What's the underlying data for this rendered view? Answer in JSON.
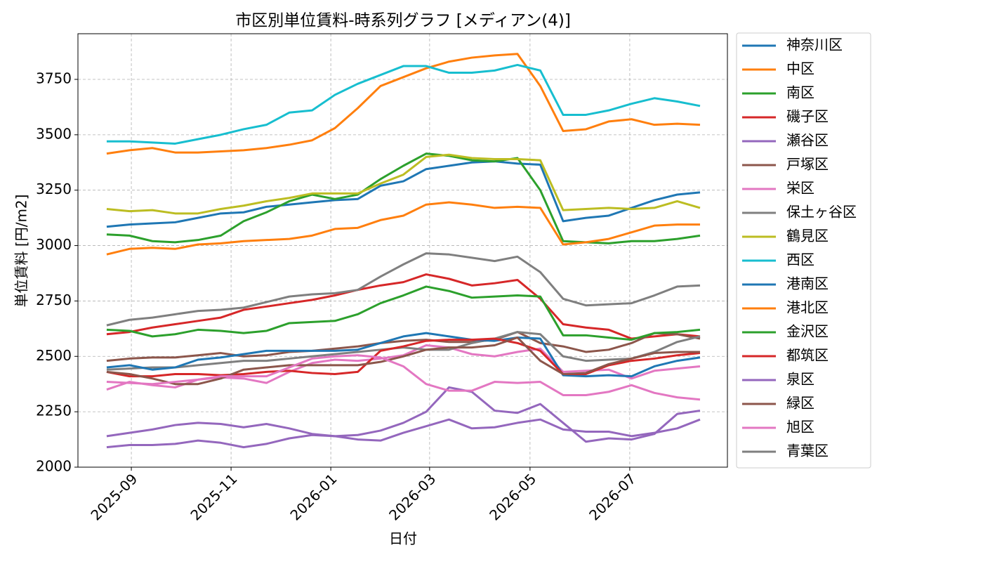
{
  "chart_data": {
    "type": "line",
    "title": "市区別単位賃料-時系列グラフ [メディアン(4)]",
    "xlabel": "日付",
    "ylabel": "単位賃料 [円/m2]",
    "categories": [
      null,
      null,
      null,
      null,
      null,
      null,
      null,
      null,
      null,
      null,
      null,
      null,
      null,
      null,
      null,
      null,
      null,
      null,
      null,
      null,
      null,
      null,
      null,
      null,
      null,
      null,
      null
    ],
    "xlim": [
      -1.26,
      27.2
    ],
    "xticks": [
      {
        "value": 1.08,
        "label": "2025-09"
      },
      {
        "value": 5.45,
        "label": "2025-11"
      },
      {
        "value": 9.82,
        "label": "2026-01"
      },
      {
        "value": 14.15,
        "label": "2026-03"
      },
      {
        "value": 18.55,
        "label": "2026-05"
      },
      {
        "value": 22.92,
        "label": "2026-07"
      }
    ],
    "ylim": [
      2000,
      3956
    ],
    "yticks": [
      2000,
      2250,
      2500,
      2750,
      3000,
      3250,
      3500,
      3750
    ],
    "grid": true,
    "legend": "outside-right",
    "series": [
      {
        "name": "神奈川区",
        "color": "#1f77b4",
        "values": [
          3085,
          3095,
          3100,
          3105,
          3125,
          3145,
          3150,
          3175,
          3185,
          3195,
          3205,
          3210,
          3270,
          3290,
          3345,
          3360,
          3375,
          3380,
          3370,
          3365,
          3110,
          3125,
          3135,
          3170,
          3205,
          3230,
          3240
        ]
      },
      {
        "name": "中区",
        "color": "#ff7f0e",
        "values": [
          3415,
          3430,
          3440,
          3420,
          3420,
          3425,
          3430,
          3440,
          3455,
          3475,
          3530,
          3620,
          3720,
          3760,
          3800,
          3830,
          3848,
          3858,
          3865,
          3720,
          3517,
          3525,
          3560,
          3570,
          3545,
          3550,
          3545
        ]
      },
      {
        "name": "南区",
        "color": "#2ca02c",
        "values": [
          3050,
          3045,
          3020,
          3015,
          3025,
          3045,
          3110,
          3150,
          3200,
          3230,
          3210,
          3230,
          3300,
          3360,
          3415,
          3405,
          3385,
          3380,
          3395,
          3250,
          3020,
          3015,
          3010,
          3020,
          3020,
          3030,
          3045
        ]
      },
      {
        "name": "磯子区",
        "color": "#d62728",
        "values": [
          2600,
          2610,
          2630,
          2645,
          2660,
          2675,
          2710,
          2725,
          2740,
          2755,
          2775,
          2800,
          2820,
          2835,
          2870,
          2850,
          2820,
          2830,
          2845,
          2760,
          2645,
          2630,
          2620,
          2580,
          2590,
          2600,
          2590
        ]
      },
      {
        "name": "瀬谷区",
        "color": "#9467bd",
        "values": [
          2090,
          2100,
          2100,
          2105,
          2120,
          2110,
          2090,
          2105,
          2130,
          2145,
          2140,
          2125,
          2120,
          2155,
          2185,
          2215,
          2175,
          2180,
          2200,
          2215,
          2170,
          2160,
          2160,
          2140,
          2155,
          2175,
          2215
        ]
      },
      {
        "name": "戸塚区",
        "color": "#8c564b",
        "values": [
          2480,
          2490,
          2495,
          2495,
          2505,
          2515,
          2500,
          2505,
          2520,
          2525,
          2535,
          2545,
          2560,
          2570,
          2575,
          2565,
          2565,
          2575,
          2610,
          2560,
          2545,
          2520,
          2530,
          2560,
          2605,
          2600,
          2580
        ]
      },
      {
        "name": "栄区",
        "color": "#e377c2",
        "values": [
          2350,
          2385,
          2370,
          2360,
          2395,
          2405,
          2400,
          2380,
          2430,
          2470,
          2485,
          2480,
          2490,
          2505,
          2550,
          2540,
          2510,
          2500,
          2520,
          2535,
          2430,
          2435,
          2440,
          2400,
          2435,
          2445,
          2455
        ]
      },
      {
        "name": "保土ヶ谷区",
        "color": "#7f7f7f",
        "values": [
          2440,
          2445,
          2450,
          2450,
          2460,
          2470,
          2480,
          2480,
          2490,
          2500,
          2510,
          2520,
          2530,
          2540,
          2530,
          2530,
          2560,
          2580,
          2610,
          2600,
          2500,
          2480,
          2485,
          2490,
          2520,
          2565,
          2590
        ]
      },
      {
        "name": "鶴見区",
        "color": "#bcbd22",
        "values": [
          3165,
          3155,
          3160,
          3145,
          3145,
          3165,
          3180,
          3200,
          3215,
          3235,
          3235,
          3235,
          3280,
          3320,
          3400,
          3410,
          3395,
          3390,
          3390,
          3385,
          3160,
          3165,
          3170,
          3165,
          3170,
          3200,
          3170
        ]
      },
      {
        "name": "西区",
        "color": "#17becf",
        "values": [
          3470,
          3470,
          3465,
          3460,
          3480,
          3500,
          3525,
          3545,
          3600,
          3610,
          3680,
          3730,
          3770,
          3810,
          3810,
          3780,
          3780,
          3790,
          3815,
          3790,
          3590,
          3590,
          3610,
          3640,
          3665,
          3650,
          3630
        ]
      },
      {
        "name": "港南区",
        "color": "#1f77b4",
        "values": [
          2450,
          2460,
          2440,
          2450,
          2485,
          2495,
          2510,
          2525,
          2525,
          2525,
          2525,
          2530,
          2560,
          2590,
          2605,
          2590,
          2575,
          2570,
          2585,
          2580,
          2415,
          2410,
          2415,
          2410,
          2455,
          2480,
          2495
        ]
      },
      {
        "name": "港北区",
        "color": "#ff7f0e",
        "values": [
          2960,
          2985,
          2990,
          2985,
          3005,
          3010,
          3020,
          3025,
          3030,
          3045,
          3075,
          3080,
          3115,
          3135,
          3185,
          3195,
          3185,
          3170,
          3175,
          3170,
          3005,
          3015,
          3030,
          3060,
          3090,
          3095,
          3095
        ]
      },
      {
        "name": "金沢区",
        "color": "#2ca02c",
        "values": [
          2620,
          2615,
          2590,
          2600,
          2620,
          2615,
          2605,
          2615,
          2650,
          2655,
          2660,
          2690,
          2740,
          2775,
          2815,
          2795,
          2765,
          2770,
          2775,
          2770,
          2595,
          2595,
          2585,
          2575,
          2605,
          2610,
          2620
        ]
      },
      {
        "name": "都筑区",
        "color": "#d62728",
        "values": [
          2430,
          2410,
          2410,
          2420,
          2420,
          2415,
          2420,
          2430,
          2435,
          2425,
          2420,
          2430,
          2525,
          2545,
          2570,
          2575,
          2575,
          2580,
          2560,
          2525,
          2420,
          2420,
          2460,
          2480,
          2490,
          2505,
          2515
        ]
      },
      {
        "name": "泉区",
        "color": "#9467bd",
        "values": [
          2140,
          2155,
          2170,
          2190,
          2200,
          2195,
          2180,
          2195,
          2175,
          2150,
          2140,
          2145,
          2165,
          2200,
          2250,
          2360,
          2340,
          2255,
          2245,
          2285,
          2200,
          2115,
          2130,
          2125,
          2150,
          2240,
          2255
        ]
      },
      {
        "name": "緑区",
        "color": "#8c564b",
        "values": [
          2430,
          2420,
          2400,
          2375,
          2375,
          2400,
          2440,
          2450,
          2460,
          2460,
          2460,
          2460,
          2475,
          2500,
          2530,
          2540,
          2540,
          2550,
          2585,
          2480,
          2420,
          2425,
          2465,
          2490,
          2515,
          2520,
          2520
        ]
      },
      {
        "name": "旭区",
        "color": "#e377c2",
        "values": [
          2385,
          2380,
          2375,
          2385,
          2395,
          2410,
          2410,
          2410,
          2450,
          2490,
          2500,
          2505,
          2495,
          2455,
          2375,
          2345,
          2345,
          2385,
          2380,
          2385,
          2325,
          2325,
          2340,
          2370,
          2335,
          2315,
          2305
        ]
      },
      {
        "name": "青葉区",
        "color": "#7f7f7f",
        "values": [
          2640,
          2665,
          2675,
          2690,
          2705,
          2710,
          2720,
          2745,
          2770,
          2780,
          2785,
          2800,
          2860,
          2915,
          2965,
          2960,
          2945,
          2930,
          2950,
          2880,
          2760,
          2730,
          2735,
          2740,
          2775,
          2815,
          2820
        ]
      }
    ]
  }
}
